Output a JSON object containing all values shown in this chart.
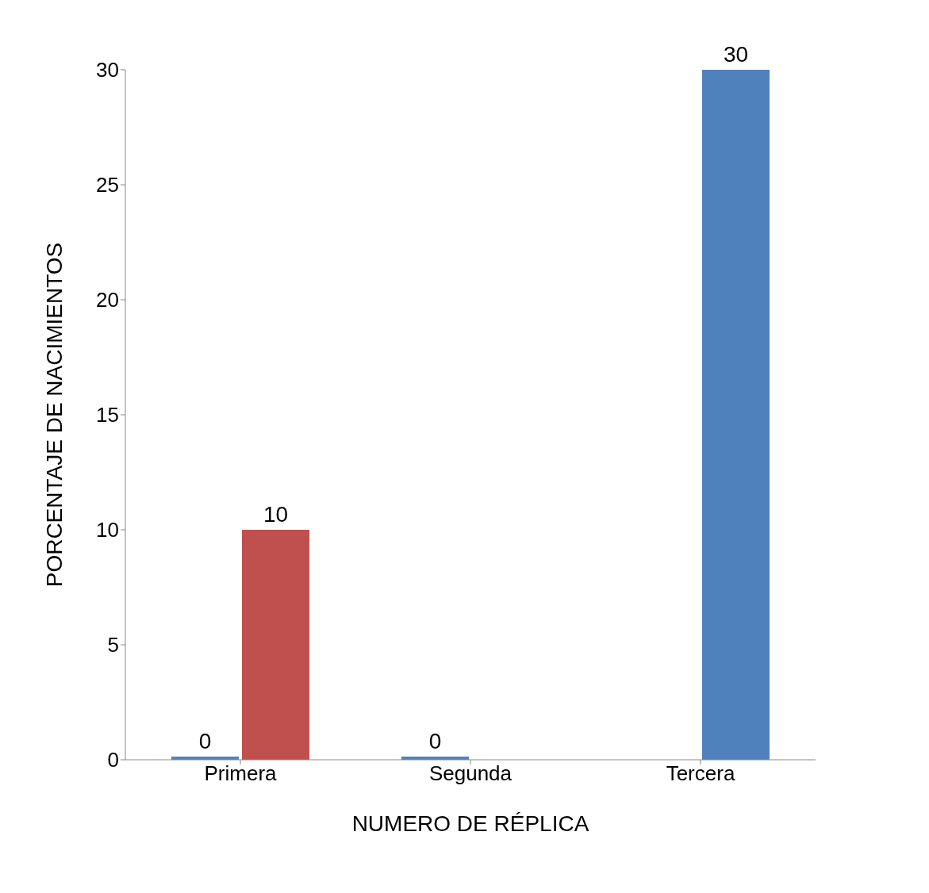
{
  "chart_data": {
    "type": "bar",
    "xlabel": "NUMERO DE RÉPLICA",
    "ylabel": "PORCENTAJE DE NACIMIENTOS",
    "categories": [
      "Primera",
      "Segunda",
      "Tercera"
    ],
    "series": [
      {
        "color": "#4f81bd",
        "values": [
          0,
          0,
          null
        ]
      },
      {
        "colors": [
          "#c0504d",
          null,
          "#4f81bd"
        ],
        "values": [
          10,
          null,
          30
        ]
      }
    ],
    "ylim": [
      0,
      30
    ],
    "yticks": [
      0,
      5,
      10,
      15,
      20,
      25,
      30
    ],
    "grid": false,
    "legend": false,
    "data_labels": true
  }
}
